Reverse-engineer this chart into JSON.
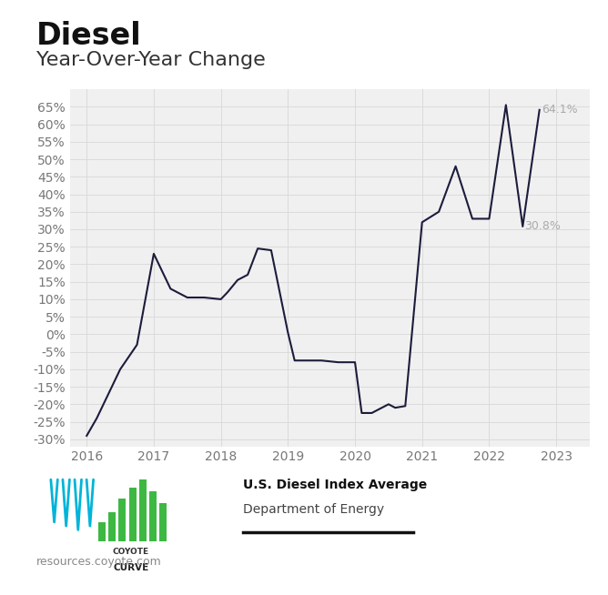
{
  "title_main": "Diesel",
  "title_sub": "Year-Over-Year Change",
  "x_values": [
    2016.0,
    2016.15,
    2016.3,
    2016.5,
    2016.75,
    2017.0,
    2017.25,
    2017.5,
    2017.75,
    2018.0,
    2018.1,
    2018.25,
    2018.4,
    2018.55,
    2018.75,
    2019.0,
    2019.1,
    2019.25,
    2019.5,
    2019.75,
    2020.0,
    2020.1,
    2020.25,
    2020.5,
    2020.6,
    2020.75,
    2021.0,
    2021.25,
    2021.5,
    2021.75,
    2022.0,
    2022.25,
    2022.5,
    2022.75
  ],
  "y_values": [
    -29.0,
    -24.0,
    -18.0,
    -10.0,
    -3.0,
    23.0,
    13.0,
    10.5,
    10.5,
    10.0,
    12.0,
    15.5,
    17.0,
    24.5,
    24.0,
    0.5,
    -7.5,
    -7.5,
    -7.5,
    -8.0,
    -8.0,
    -22.5,
    -22.5,
    -20.0,
    -21.0,
    -20.5,
    32.0,
    35.0,
    48.0,
    33.0,
    33.0,
    65.5,
    30.8,
    64.1
  ],
  "line_color": "#1c1c3c",
  "chart_bg": "#f0f0f0",
  "grid_color": "#d8d8d8",
  "ytick_values": [
    -30,
    -25,
    -20,
    -15,
    -10,
    -5,
    0,
    5,
    10,
    15,
    20,
    25,
    30,
    35,
    40,
    45,
    50,
    55,
    60,
    65
  ],
  "ytick_labels": [
    "-30%",
    "-25%",
    "-20%",
    "-15%",
    "-10%",
    "-5%",
    "0%",
    "5%",
    "10%",
    "15%",
    "20%",
    "25%",
    "30%",
    "35%",
    "40%",
    "45%",
    "50%",
    "55%",
    "60%",
    "65%"
  ],
  "xtick_values": [
    2016,
    2017,
    2018,
    2019,
    2020,
    2021,
    2022,
    2023
  ],
  "xtick_labels": [
    "2016",
    "2017",
    "2018",
    "2019",
    "2020",
    "2021",
    "2022",
    "2023"
  ],
  "ylim": [
    -32,
    70
  ],
  "xlim": [
    2015.75,
    2023.5
  ],
  "ann1_x": 2022.78,
  "ann1_y": 64.1,
  "ann1_text": "64.1%",
  "ann2_x": 2022.52,
  "ann2_y": 30.8,
  "ann2_text": "30.8%",
  "ann_color": "#aaaaaa",
  "ann_fontsize": 9,
  "source_bold": "U.S. Diesel Index Average",
  "source_normal": "Department of Energy",
  "watermark": "resources.coyote.com",
  "tick_color": "#777777",
  "tick_fontsize": 10,
  "title_main_fontsize": 24,
  "title_sub_fontsize": 16
}
